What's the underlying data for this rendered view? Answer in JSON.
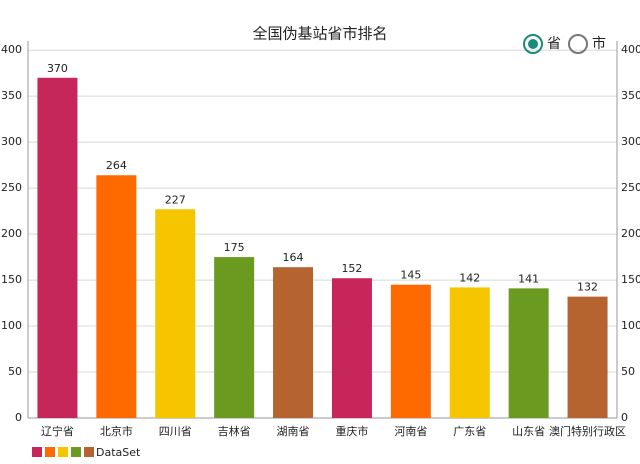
{
  "chart_data": {
    "type": "bar",
    "title": "全国伪基站省市排名",
    "categories": [
      "辽宁省",
      "北京市",
      "四川省",
      "吉林省",
      "湖南省",
      "重庆市",
      "河南省",
      "广东省",
      "山东省",
      "澳门特别行政区"
    ],
    "series": [
      {
        "name": "DataSet",
        "colors": [
          "#c7265a",
          "#ff6a00",
          "#f5c500",
          "#6a9a20",
          "#b5632f"
        ],
        "values": [
          370,
          264,
          227,
          175,
          164,
          152,
          145,
          142,
          141,
          132
        ]
      }
    ],
    "ylim": [
      0,
      410
    ],
    "yticks": [
      0,
      50,
      100,
      150,
      200,
      250,
      300,
      350,
      400
    ],
    "grid": true
  },
  "radio_options": [
    {
      "label": "省",
      "selected": true
    },
    {
      "label": "市",
      "selected": false
    }
  ]
}
